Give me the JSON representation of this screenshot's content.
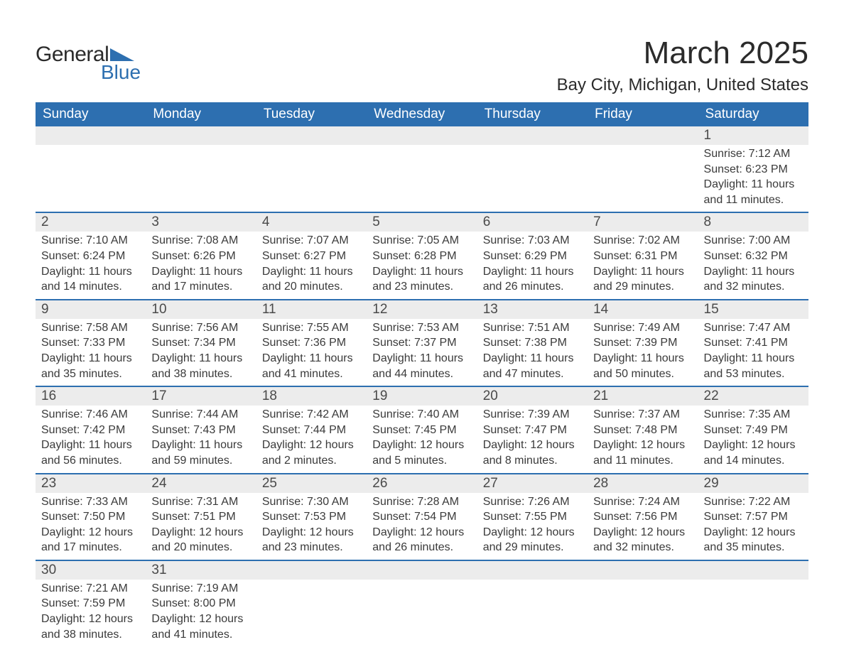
{
  "logo": {
    "text_top": "General",
    "text_bottom": "Blue",
    "triangle_color": "#2d6fb0"
  },
  "title": "March 2025",
  "location": "Bay City, Michigan, United States",
  "colors": {
    "header_bg": "#2d6fb0",
    "header_text": "#ffffff",
    "daynum_bg": "#ececec",
    "border": "#2d6fb0",
    "body_text": "#3a3a3a",
    "page_bg": "#ffffff"
  },
  "day_headers": [
    "Sunday",
    "Monday",
    "Tuesday",
    "Wednesday",
    "Thursday",
    "Friday",
    "Saturday"
  ],
  "weeks": [
    [
      null,
      null,
      null,
      null,
      null,
      null,
      {
        "n": "1",
        "sr": "Sunrise: 7:12 AM",
        "ss": "Sunset: 6:23 PM",
        "dl": "Daylight: 11 hours and 11 minutes."
      }
    ],
    [
      {
        "n": "2",
        "sr": "Sunrise: 7:10 AM",
        "ss": "Sunset: 6:24 PM",
        "dl": "Daylight: 11 hours and 14 minutes."
      },
      {
        "n": "3",
        "sr": "Sunrise: 7:08 AM",
        "ss": "Sunset: 6:26 PM",
        "dl": "Daylight: 11 hours and 17 minutes."
      },
      {
        "n": "4",
        "sr": "Sunrise: 7:07 AM",
        "ss": "Sunset: 6:27 PM",
        "dl": "Daylight: 11 hours and 20 minutes."
      },
      {
        "n": "5",
        "sr": "Sunrise: 7:05 AM",
        "ss": "Sunset: 6:28 PM",
        "dl": "Daylight: 11 hours and 23 minutes."
      },
      {
        "n": "6",
        "sr": "Sunrise: 7:03 AM",
        "ss": "Sunset: 6:29 PM",
        "dl": "Daylight: 11 hours and 26 minutes."
      },
      {
        "n": "7",
        "sr": "Sunrise: 7:02 AM",
        "ss": "Sunset: 6:31 PM",
        "dl": "Daylight: 11 hours and 29 minutes."
      },
      {
        "n": "8",
        "sr": "Sunrise: 7:00 AM",
        "ss": "Sunset: 6:32 PM",
        "dl": "Daylight: 11 hours and 32 minutes."
      }
    ],
    [
      {
        "n": "9",
        "sr": "Sunrise: 7:58 AM",
        "ss": "Sunset: 7:33 PM",
        "dl": "Daylight: 11 hours and 35 minutes."
      },
      {
        "n": "10",
        "sr": "Sunrise: 7:56 AM",
        "ss": "Sunset: 7:34 PM",
        "dl": "Daylight: 11 hours and 38 minutes."
      },
      {
        "n": "11",
        "sr": "Sunrise: 7:55 AM",
        "ss": "Sunset: 7:36 PM",
        "dl": "Daylight: 11 hours and 41 minutes."
      },
      {
        "n": "12",
        "sr": "Sunrise: 7:53 AM",
        "ss": "Sunset: 7:37 PM",
        "dl": "Daylight: 11 hours and 44 minutes."
      },
      {
        "n": "13",
        "sr": "Sunrise: 7:51 AM",
        "ss": "Sunset: 7:38 PM",
        "dl": "Daylight: 11 hours and 47 minutes."
      },
      {
        "n": "14",
        "sr": "Sunrise: 7:49 AM",
        "ss": "Sunset: 7:39 PM",
        "dl": "Daylight: 11 hours and 50 minutes."
      },
      {
        "n": "15",
        "sr": "Sunrise: 7:47 AM",
        "ss": "Sunset: 7:41 PM",
        "dl": "Daylight: 11 hours and 53 minutes."
      }
    ],
    [
      {
        "n": "16",
        "sr": "Sunrise: 7:46 AM",
        "ss": "Sunset: 7:42 PM",
        "dl": "Daylight: 11 hours and 56 minutes."
      },
      {
        "n": "17",
        "sr": "Sunrise: 7:44 AM",
        "ss": "Sunset: 7:43 PM",
        "dl": "Daylight: 11 hours and 59 minutes."
      },
      {
        "n": "18",
        "sr": "Sunrise: 7:42 AM",
        "ss": "Sunset: 7:44 PM",
        "dl": "Daylight: 12 hours and 2 minutes."
      },
      {
        "n": "19",
        "sr": "Sunrise: 7:40 AM",
        "ss": "Sunset: 7:45 PM",
        "dl": "Daylight: 12 hours and 5 minutes."
      },
      {
        "n": "20",
        "sr": "Sunrise: 7:39 AM",
        "ss": "Sunset: 7:47 PM",
        "dl": "Daylight: 12 hours and 8 minutes."
      },
      {
        "n": "21",
        "sr": "Sunrise: 7:37 AM",
        "ss": "Sunset: 7:48 PM",
        "dl": "Daylight: 12 hours and 11 minutes."
      },
      {
        "n": "22",
        "sr": "Sunrise: 7:35 AM",
        "ss": "Sunset: 7:49 PM",
        "dl": "Daylight: 12 hours and 14 minutes."
      }
    ],
    [
      {
        "n": "23",
        "sr": "Sunrise: 7:33 AM",
        "ss": "Sunset: 7:50 PM",
        "dl": "Daylight: 12 hours and 17 minutes."
      },
      {
        "n": "24",
        "sr": "Sunrise: 7:31 AM",
        "ss": "Sunset: 7:51 PM",
        "dl": "Daylight: 12 hours and 20 minutes."
      },
      {
        "n": "25",
        "sr": "Sunrise: 7:30 AM",
        "ss": "Sunset: 7:53 PM",
        "dl": "Daylight: 12 hours and 23 minutes."
      },
      {
        "n": "26",
        "sr": "Sunrise: 7:28 AM",
        "ss": "Sunset: 7:54 PM",
        "dl": "Daylight: 12 hours and 26 minutes."
      },
      {
        "n": "27",
        "sr": "Sunrise: 7:26 AM",
        "ss": "Sunset: 7:55 PM",
        "dl": "Daylight: 12 hours and 29 minutes."
      },
      {
        "n": "28",
        "sr": "Sunrise: 7:24 AM",
        "ss": "Sunset: 7:56 PM",
        "dl": "Daylight: 12 hours and 32 minutes."
      },
      {
        "n": "29",
        "sr": "Sunrise: 7:22 AM",
        "ss": "Sunset: 7:57 PM",
        "dl": "Daylight: 12 hours and 35 minutes."
      }
    ],
    [
      {
        "n": "30",
        "sr": "Sunrise: 7:21 AM",
        "ss": "Sunset: 7:59 PM",
        "dl": "Daylight: 12 hours and 38 minutes."
      },
      {
        "n": "31",
        "sr": "Sunrise: 7:19 AM",
        "ss": "Sunset: 8:00 PM",
        "dl": "Daylight: 12 hours and 41 minutes."
      },
      null,
      null,
      null,
      null,
      null
    ]
  ]
}
